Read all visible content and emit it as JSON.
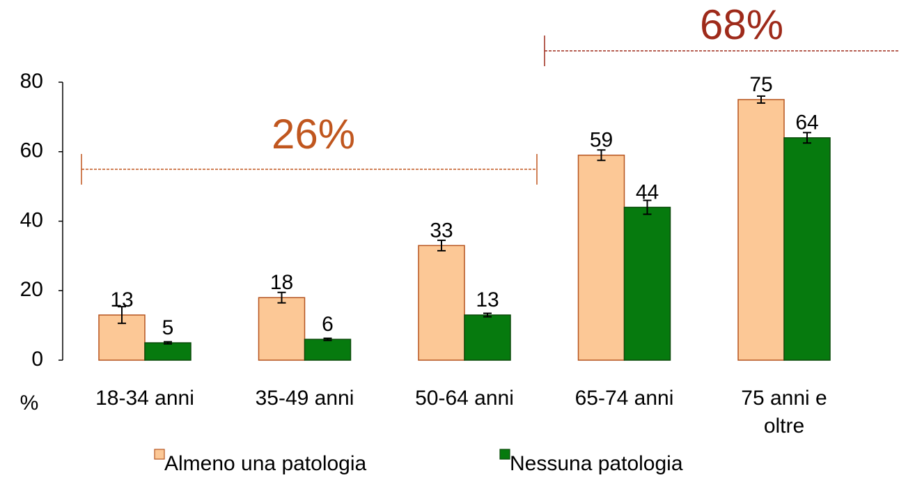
{
  "chart_data": {
    "type": "bar",
    "y_label": "%",
    "categories": [
      "18-34 anni",
      "35-49 anni",
      "50-64 anni",
      "65-74 anni",
      "75 anni e oltre"
    ],
    "series": [
      {
        "name": "Almeno una patologia",
        "color": "#fcc896",
        "stroke": "#b5531e",
        "values": [
          13,
          18,
          33,
          59,
          75
        ],
        "errors": [
          2.4,
          1.5,
          1.5,
          1.5,
          1
        ]
      },
      {
        "name": "Nessuna patologia",
        "color": "#067a0e",
        "stroke": "#0a4a0a",
        "values": [
          5,
          6,
          13,
          44,
          64
        ],
        "errors": [
          0.3,
          0.3,
          0.5,
          2,
          1.5
        ]
      }
    ],
    "ylim": [
      0,
      80
    ],
    "yticks": [
      0,
      20,
      40,
      60,
      80
    ],
    "annotations": [
      {
        "text": "26%",
        "color": "#c0561e"
      },
      {
        "text": "68%",
        "color": "#9e2a1a"
      }
    ]
  }
}
